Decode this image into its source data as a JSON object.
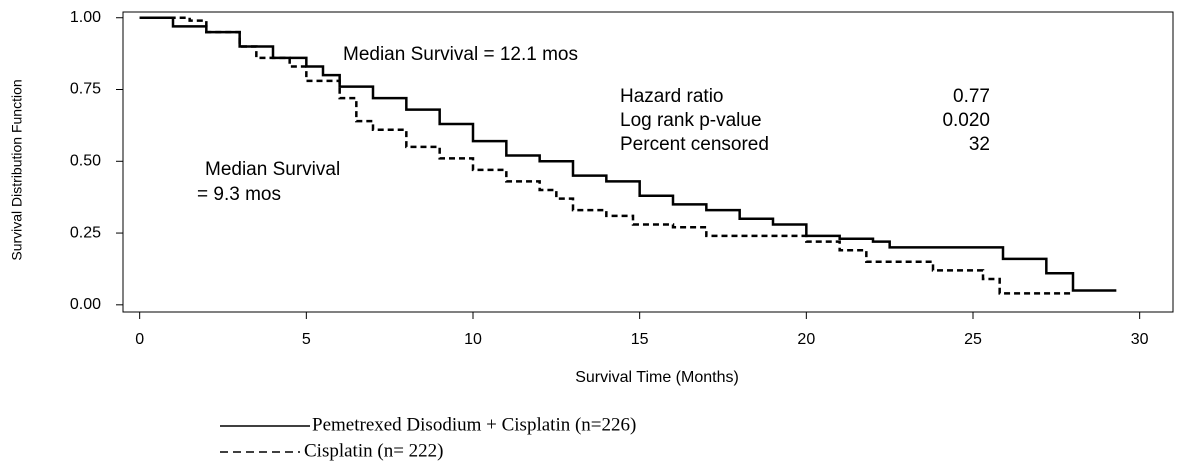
{
  "chart_data": {
    "type": "step",
    "x_label": "Survival Time (Months)",
    "y_label": "Survival Distribution Function",
    "xlim": [
      -0.5,
      31
    ],
    "ylim": [
      -0.025,
      1.02
    ],
    "xticks": [
      0,
      5,
      10,
      15,
      20,
      25,
      30
    ],
    "yticks": [
      {
        "value": 1,
        "label": "1.00"
      },
      0.75,
      {
        "value": 0.5,
        "label": "0.50"
      },
      0.25,
      {
        "value": 0,
        "label": "0.00"
      }
    ],
    "annotations": [
      "Median Survival = 12.1 mos",
      "Median Survival",
      "= 9.3 mos"
    ],
    "stats": [
      {
        "label": "Hazard ratio",
        "value": "0.77"
      },
      {
        "label": "Log rank p-value",
        "value": "0.020"
      },
      {
        "label": "Percent censored",
        "value": "32"
      }
    ],
    "series": [
      {
        "name": "Pemetrexed Disodium + Cisplatin (n=226)",
        "color": "#000000",
        "dash": "solid",
        "x": [
          0,
          1,
          2,
          3,
          4,
          5,
          5.5,
          6,
          7,
          8,
          9,
          10,
          11,
          12,
          13,
          14,
          15,
          16,
          17,
          18,
          19,
          20,
          21,
          22,
          22.5,
          25.9,
          27.2,
          28,
          29.3
        ],
        "values": [
          1,
          0.97,
          0.95,
          0.9,
          0.86,
          0.83,
          0.8,
          0.76,
          0.72,
          0.68,
          0.63,
          0.57,
          0.52,
          0.5,
          0.45,
          0.43,
          0.38,
          0.35,
          0.33,
          0.3,
          0.28,
          0.24,
          0.23,
          0.22,
          0.2,
          0.16,
          0.11,
          0.05,
          0.05
        ]
      },
      {
        "name": "Cisplatin (n= 222)",
        "color": "#000000",
        "dash": "dashed",
        "x": [
          0,
          1.5,
          2,
          3,
          3.5,
          4.5,
          5,
          6,
          6.5,
          7,
          8,
          9,
          10,
          11,
          12,
          12.5,
          13,
          14,
          14.8,
          16,
          17,
          19,
          20,
          21,
          21.8,
          23.8,
          25.3,
          25.8,
          28
        ],
        "values": [
          1,
          0.99,
          0.95,
          0.9,
          0.86,
          0.83,
          0.78,
          0.72,
          0.64,
          0.61,
          0.55,
          0.51,
          0.47,
          0.43,
          0.4,
          0.37,
          0.33,
          0.31,
          0.28,
          0.27,
          0.24,
          0.24,
          0.22,
          0.19,
          0.15,
          0.12,
          0.09,
          0.04,
          0.04
        ]
      }
    ]
  }
}
